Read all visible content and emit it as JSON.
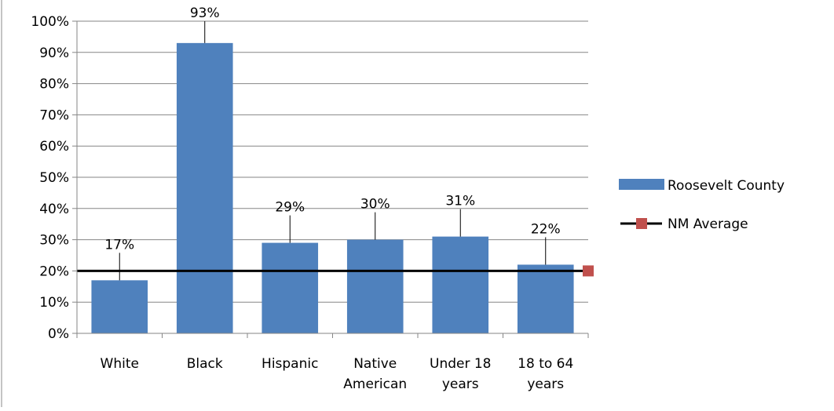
{
  "chart_data": {
    "type": "bar",
    "categories": [
      [
        "White"
      ],
      [
        "Black"
      ],
      [
        "Hispanic"
      ],
      [
        "Native",
        "American"
      ],
      [
        "Under 18",
        "years"
      ],
      [
        "18 to 64",
        "years"
      ]
    ],
    "series": [
      {
        "name": "Roosevelt County",
        "type": "bar",
        "values": [
          17,
          93,
          29,
          30,
          31,
          22
        ],
        "labels": [
          "17%",
          "93%",
          "29%",
          "30%",
          "31%",
          "22%"
        ],
        "color": "#4f81bd"
      },
      {
        "name": "NM Average",
        "type": "line",
        "value": 20,
        "line_color": "#000000",
        "marker_color": "#c0504d"
      }
    ],
    "y_ticks": [
      "0%",
      "10%",
      "20%",
      "30%",
      "40%",
      "50%",
      "60%",
      "70%",
      "80%",
      "90%",
      "100%"
    ],
    "ylim": [
      0,
      100
    ],
    "grid": true,
    "legend": "right"
  }
}
